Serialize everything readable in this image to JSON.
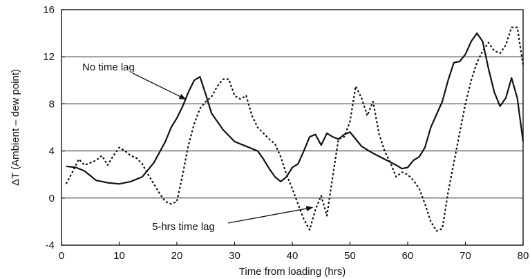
{
  "chart_data": {
    "type": "line",
    "xlabel": "Time from loading (hrs)",
    "ylabel": "ΔT (Ambient – dew point)",
    "xlim": [
      0,
      80
    ],
    "ylim": [
      -4,
      16
    ],
    "x_ticks": [
      0,
      10,
      20,
      30,
      40,
      50,
      60,
      70,
      80
    ],
    "y_ticks": [
      -4,
      0,
      4,
      8,
      12,
      16
    ],
    "grid": "horizontal",
    "annotations": [
      {
        "text": "No time lag",
        "series": "No time lag",
        "x": 21.5,
        "y": 8.4
      },
      {
        "text": "5-hrs time lag",
        "series": "5-hrs time lag",
        "x": 43.5,
        "y": -0.8
      }
    ],
    "series": [
      {
        "name": "No time lag",
        "style": "solid",
        "x": [
          0.8,
          2.5,
          4,
          6,
          8,
          10,
          12,
          14,
          16,
          18,
          19,
          20,
          21,
          22,
          23,
          24,
          25,
          26,
          28,
          30,
          32,
          34,
          35,
          36,
          37,
          38,
          39,
          40,
          41,
          42,
          43,
          44,
          45,
          46,
          47,
          48,
          49,
          50,
          51,
          52,
          53,
          54,
          56,
          58,
          59,
          60,
          61,
          62,
          63,
          64,
          66,
          67,
          68,
          69,
          70,
          71,
          72,
          73,
          74,
          75,
          76,
          77,
          78,
          79,
          80
        ],
        "y": [
          2.7,
          2.6,
          2.3,
          1.5,
          1.3,
          1.2,
          1.4,
          1.8,
          3.0,
          4.8,
          6.0,
          6.8,
          7.8,
          9.0,
          10.0,
          10.3,
          8.8,
          7.2,
          5.8,
          4.8,
          4.4,
          4.0,
          3.3,
          2.5,
          1.8,
          1.4,
          1.8,
          2.6,
          2.9,
          4.0,
          5.2,
          5.4,
          4.5,
          5.5,
          5.2,
          5.0,
          5.4,
          5.6,
          5.0,
          4.4,
          4.1,
          3.8,
          3.3,
          2.8,
          2.5,
          2.6,
          3.2,
          3.5,
          4.3,
          6.0,
          8.2,
          10.0,
          11.5,
          11.6,
          12.2,
          13.3,
          14.0,
          13.3,
          11.0,
          9.0,
          7.8,
          8.5,
          10.2,
          8.5,
          4.8
        ]
      },
      {
        "name": "5-hrs time lag",
        "style": "dotted",
        "x": [
          0.8,
          2,
          3,
          4,
          5,
          6,
          7,
          8,
          9,
          10,
          11,
          12,
          13,
          14,
          15,
          16,
          17,
          18,
          19,
          20,
          21,
          22,
          23,
          24,
          25,
          26,
          27,
          28,
          29,
          30,
          31,
          32,
          33,
          34,
          35,
          36,
          37,
          38,
          39,
          40,
          41,
          42,
          43,
          44,
          45,
          46,
          47,
          48,
          49,
          50,
          51,
          52,
          53,
          54,
          55,
          56,
          57,
          58,
          59,
          60,
          61,
          62,
          63,
          64,
          65,
          66,
          67,
          68,
          69,
          70,
          71,
          72,
          73,
          74,
          75,
          76,
          77,
          78,
          79,
          80
        ],
        "y": [
          1.2,
          2.3,
          3.3,
          2.8,
          3.0,
          3.2,
          3.6,
          2.8,
          3.6,
          4.3,
          4.0,
          3.6,
          3.4,
          2.9,
          2.0,
          1.2,
          0.4,
          -0.3,
          -0.5,
          -0.3,
          2.0,
          4.5,
          6.3,
          7.6,
          8.2,
          8.6,
          9.5,
          10.1,
          10.1,
          8.7,
          8.4,
          8.7,
          7.0,
          6.0,
          5.5,
          5.0,
          4.6,
          3.5,
          2.0,
          0.8,
          -0.5,
          -1.8,
          -2.7,
          -1.0,
          0.2,
          -1.5,
          1.8,
          5.0,
          5.2,
          6.5,
          9.5,
          8.5,
          7.0,
          8.2,
          5.5,
          4.0,
          3.0,
          1.8,
          2.2,
          2.0,
          1.5,
          0.8,
          -0.5,
          -2.0,
          -2.8,
          -2.6,
          0.5,
          3.0,
          5.5,
          8.0,
          10.0,
          11.5,
          12.5,
          13.2,
          12.5,
          12.3,
          13.0,
          14.5,
          14.5,
          11.3
        ]
      }
    ]
  }
}
